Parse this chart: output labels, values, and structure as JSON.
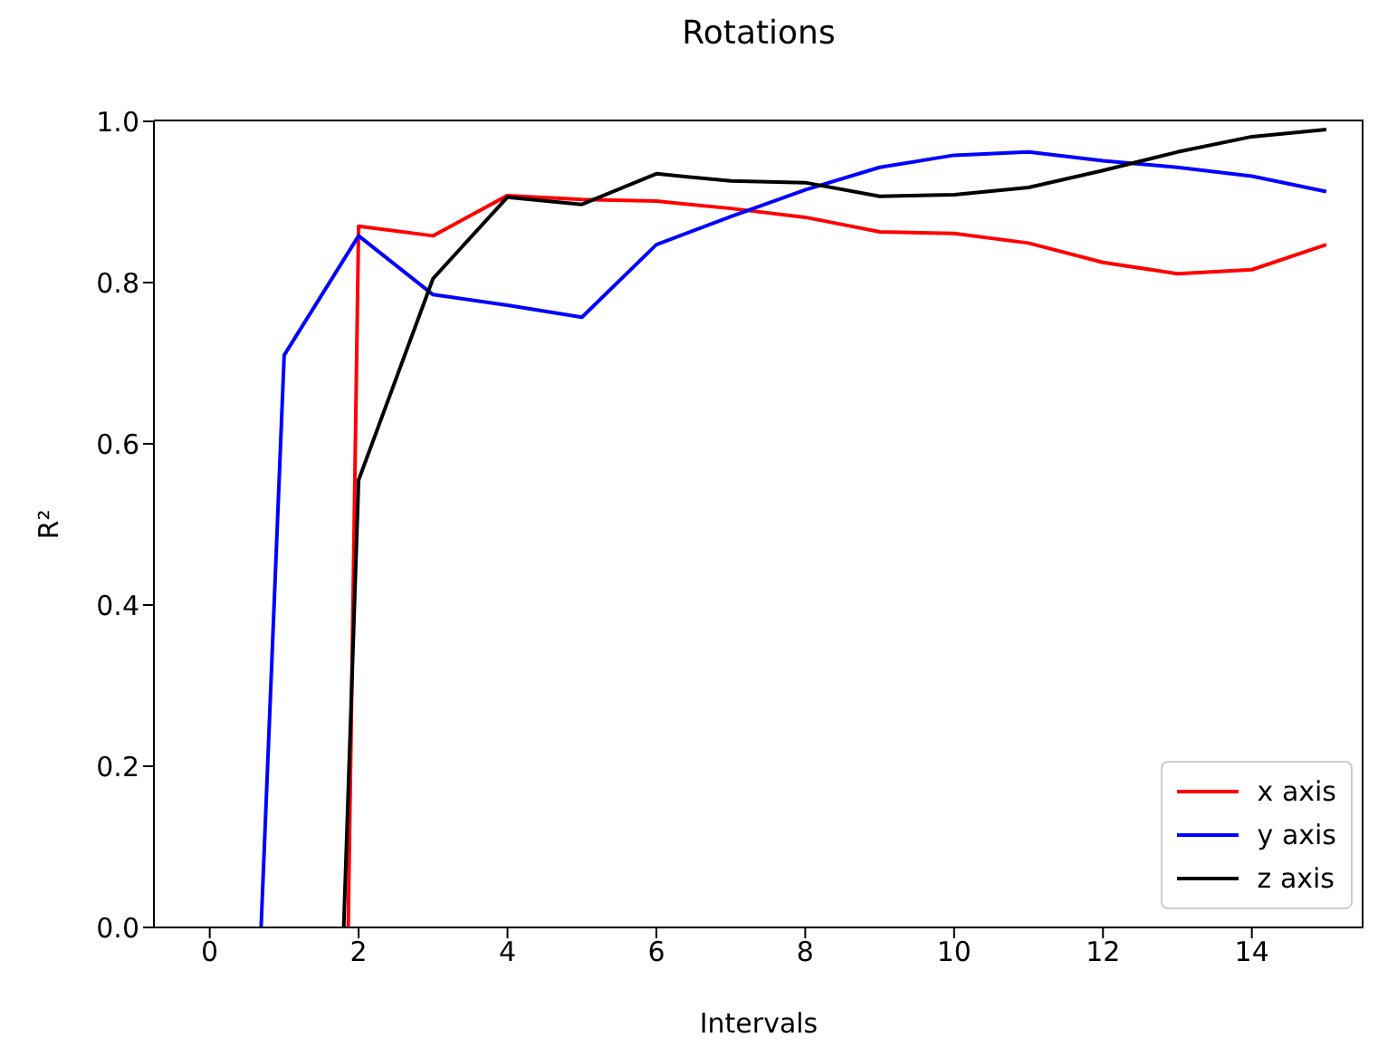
{
  "chart_data": {
    "type": "line",
    "title": "Rotations",
    "xlabel": "Intervals",
    "ylabel": "R²",
    "xlim": [
      -0.75,
      15.5
    ],
    "xticks": [
      0,
      2,
      4,
      6,
      8,
      10,
      12,
      14
    ],
    "ylim": [
      0,
      1
    ],
    "yticks": [
      {
        "value": 0,
        "label": "0.0"
      },
      {
        "value": 0.2,
        "label": "0.2"
      },
      {
        "value": 0.4,
        "label": "0.4"
      },
      {
        "value": 0.6,
        "label": "0.6"
      },
      {
        "value": 0.8,
        "label": "0.8"
      },
      {
        "value": 1,
        "label": "1.0"
      }
    ],
    "series": [
      {
        "name": "x axis",
        "color": "#ff0000",
        "x": [
          1.86,
          2,
          3,
          4,
          5,
          6,
          7,
          8,
          9,
          10,
          11,
          12,
          13,
          14,
          15
        ],
        "values": [
          0,
          0.87,
          0.858,
          0.908,
          0.903,
          0.901,
          0.892,
          0.881,
          0.863,
          0.861,
          0.849,
          0.825,
          0.811,
          0.816,
          0.847
        ]
      },
      {
        "name": "y axis",
        "color": "#0000ff",
        "x": [
          0.69,
          1,
          2,
          3,
          4,
          5,
          6,
          7,
          8,
          9,
          10,
          11,
          12,
          13,
          14,
          15
        ],
        "values": [
          0,
          0.71,
          0.858,
          0.785,
          0.772,
          0.757,
          0.847,
          0.882,
          0.915,
          0.943,
          0.958,
          0.962,
          0.951,
          0.943,
          0.932,
          0.913
        ]
      },
      {
        "name": "z axis",
        "color": "#000000",
        "x": [
          1.8,
          2,
          3,
          4,
          5,
          6,
          7,
          8,
          9,
          10,
          11,
          12,
          13,
          14,
          15
        ],
        "values": [
          0,
          0.555,
          0.805,
          0.906,
          0.897,
          0.935,
          0.926,
          0.924,
          0.907,
          0.909,
          0.918,
          0.939,
          0.962,
          0.981,
          0.99
        ]
      }
    ],
    "grid": false,
    "legend": "bottom right",
    "marker": "none",
    "line_style": "solid"
  }
}
